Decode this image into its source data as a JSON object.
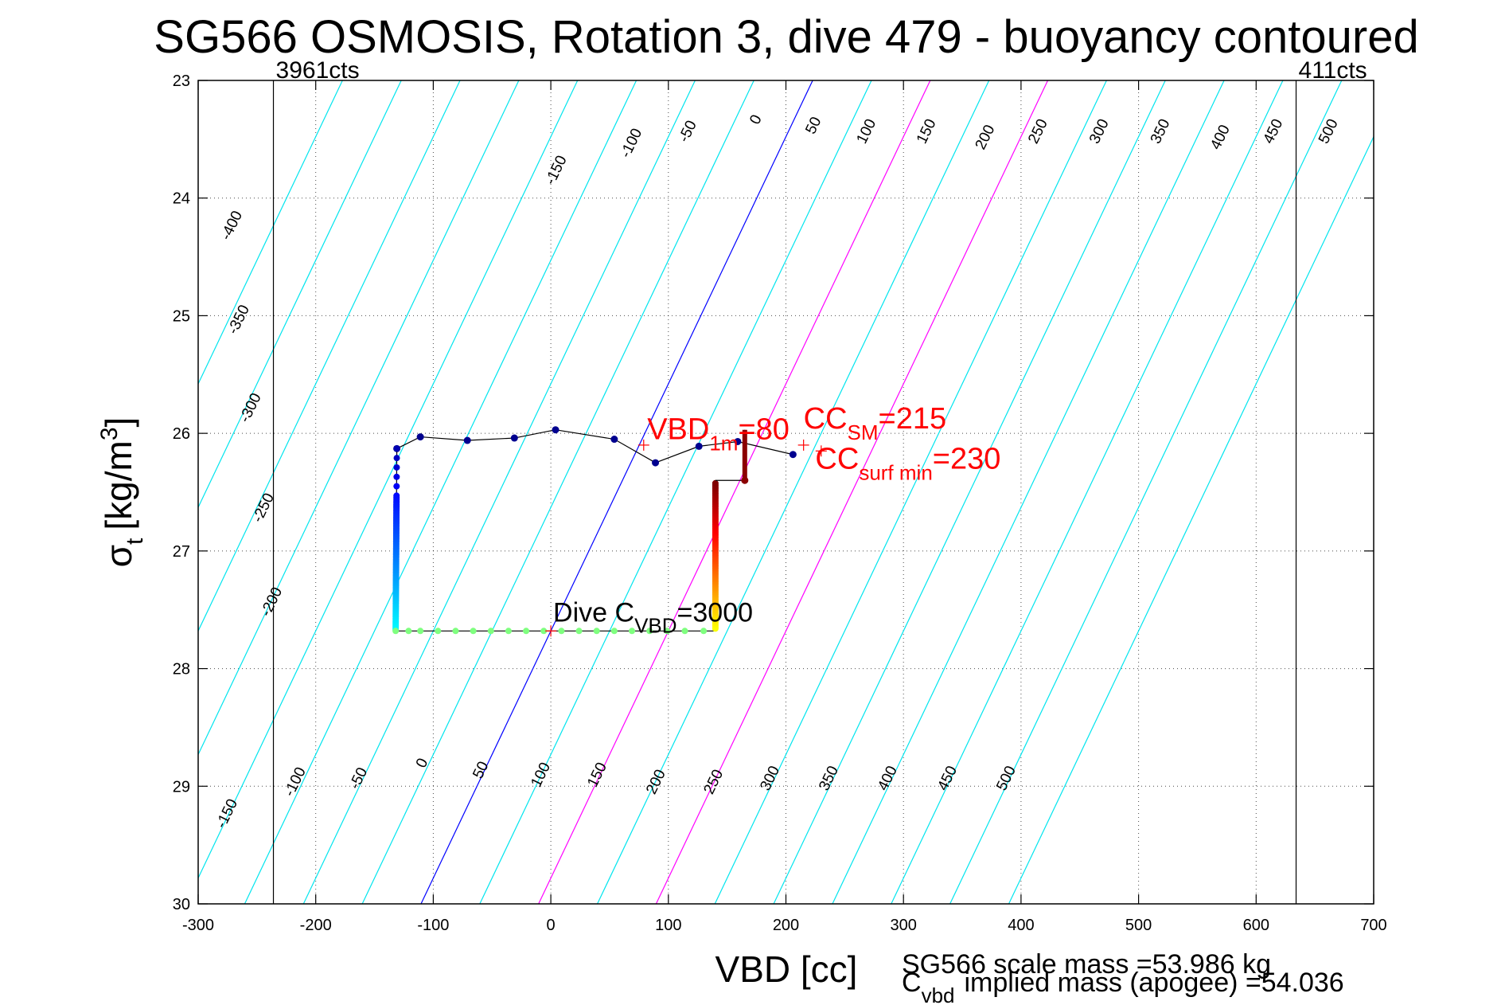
{
  "chart_data": {
    "type": "line",
    "title": "SG566 OSMOSIS, Rotation 3, dive 479 - buoyancy contoured",
    "xlabel": "VBD [cc]",
    "ylabel_main": "σ",
    "ylabel_sub": "t",
    "ylabel_unit": "[kg/m",
    "ylabel_sup": "3",
    "ylabel_close": "]",
    "xlim": [
      -300,
      700
    ],
    "ylim": [
      23,
      30
    ],
    "y_reversed": true,
    "grid": true,
    "x_ticks": [
      -300,
      -200,
      -100,
      0,
      100,
      200,
      300,
      400,
      500,
      600,
      700
    ],
    "y_ticks": [
      23,
      24,
      25,
      26,
      27,
      28,
      29,
      30
    ],
    "contour_slope": 0.0063,
    "contour_ref_y": 27.68,
    "contours": [
      -400,
      -350,
      -300,
      -250,
      -200,
      -150,
      -100,
      -50,
      0,
      50,
      100,
      150,
      200,
      250,
      300,
      350,
      400,
      450,
      500
    ],
    "highlight_contours": [
      {
        "level": 0,
        "color": "#0000ff"
      },
      {
        "level": 100,
        "color": "#ff00ff"
      },
      {
        "level": 200,
        "color": "#ff00ff"
      }
    ],
    "contour_color": "#00e5ee",
    "contour_labels_top": [
      {
        "label": "-150",
        "x": 8,
        "y": 23.78
      },
      {
        "label": "-100",
        "x": 72,
        "y": 23.55
      },
      {
        "label": "-50",
        "x": 120,
        "y": 23.45
      },
      {
        "label": "0",
        "x": 178,
        "y": 23.35
      },
      {
        "label": "50",
        "x": 227,
        "y": 23.4
      },
      {
        "label": "100",
        "x": 272,
        "y": 23.45
      },
      {
        "label": "150",
        "x": 323,
        "y": 23.45
      },
      {
        "label": "200",
        "x": 373,
        "y": 23.5
      },
      {
        "label": "250",
        "x": 418,
        "y": 23.45
      },
      {
        "label": "300",
        "x": 470,
        "y": 23.45
      },
      {
        "label": "350",
        "x": 522,
        "y": 23.45
      },
      {
        "label": "400",
        "x": 573,
        "y": 23.5
      },
      {
        "label": "450",
        "x": 618,
        "y": 23.45
      },
      {
        "label": "500",
        "x": 665,
        "y": 23.45
      }
    ],
    "contour_labels_left": [
      {
        "label": "-400",
        "x": -268,
        "y": 24.25
      },
      {
        "label": "-350",
        "x": -262,
        "y": 25.05
      },
      {
        "label": "-300",
        "x": -252,
        "y": 25.8
      },
      {
        "label": "-250",
        "x": -241,
        "y": 26.65
      },
      {
        "label": "-200",
        "x": -234,
        "y": 27.45
      },
      {
        "label": "-150",
        "x": -272,
        "y": 29.25
      }
    ],
    "contour_labels_bottom": [
      {
        "label": "-100",
        "x": -214,
        "y": 28.98
      },
      {
        "label": "-50",
        "x": -160,
        "y": 28.95
      },
      {
        "label": "0",
        "x": -106,
        "y": 28.82
      },
      {
        "label": "50",
        "x": -56,
        "y": 28.88
      },
      {
        "label": "100",
        "x": -5,
        "y": 28.92
      },
      {
        "label": "150",
        "x": 43,
        "y": 28.92
      },
      {
        "label": "200",
        "x": 93,
        "y": 28.98
      },
      {
        "label": "250",
        "x": 142,
        "y": 28.98
      },
      {
        "label": "300",
        "x": 190,
        "y": 28.95
      },
      {
        "label": "350",
        "x": 240,
        "y": 28.95
      },
      {
        "label": "400",
        "x": 290,
        "y": 28.95
      },
      {
        "label": "450",
        "x": 341,
        "y": 28.95
      },
      {
        "label": "500",
        "x": 391,
        "y": 28.95
      }
    ],
    "vertical_lines": [
      {
        "x": -236,
        "label": "3961cts"
      },
      {
        "x": 634,
        "label": "411cts"
      }
    ],
    "dive_series": {
      "name": "dive",
      "color": "#000000",
      "points": [
        [
          -131,
          26.13
        ],
        [
          -111,
          26.03
        ],
        [
          -71,
          26.06
        ],
        [
          -31,
          26.04
        ],
        [
          4,
          25.97
        ],
        [
          54,
          26.05
        ],
        [
          89,
          26.25
        ],
        [
          126,
          26.11
        ],
        [
          159,
          26.07
        ],
        [
          206,
          26.18
        ]
      ]
    },
    "vertical_segment_left": {
      "x_top": -131,
      "y_top": 26.13,
      "x_bottom": -132,
      "y_bottom": 27.68,
      "dense_from": 26.45
    },
    "bottom_segment": {
      "x_start": -132,
      "x_end": 140,
      "y": 27.68,
      "dots_x": [
        -132,
        -121,
        -111,
        -96,
        -81,
        -66,
        -51,
        -36,
        -21,
        -6,
        9,
        24,
        39,
        54,
        69,
        84,
        99,
        114,
        130
      ]
    },
    "vertical_segment_right": {
      "x_top": 140,
      "y_top": 26.42,
      "x_bottom": 140,
      "y_bottom": 27.66
    },
    "climb_hook": [
      [
        140,
        26.4
      ],
      [
        165,
        26.4
      ],
      [
        165,
        25.97
      ]
    ],
    "markers": [
      {
        "name": "vbd-1m",
        "x": 79,
        "y": 26.1
      },
      {
        "name": "cc-sm",
        "x": 215,
        "y": 26.1
      },
      {
        "name": "cc-surf-min",
        "x": 230,
        "y": 26.15
      },
      {
        "name": "dive-cvbd",
        "x": 0,
        "y": 27.68
      }
    ],
    "annotations": {
      "vbd_1m": {
        "main": "VBD",
        "sub": "1m",
        "value": "=80",
        "x": 82,
        "y": 26.05
      },
      "cc_sm": {
        "main": "CC",
        "sub": "SM",
        "value": "=215",
        "x": 215,
        "y": 25.96
      },
      "cc_surf_min": {
        "main": "CC",
        "sub": "surf min",
        "value": "=230",
        "x": 225,
        "y": 26.3
      },
      "dive_cvbd": {
        "main": "Dive C",
        "sub": "VBD",
        "value": "=3000",
        "x": 2,
        "y": 27.6
      }
    },
    "colormap_note": "points colored by depth using jet colormap (blue top → red)"
  },
  "footer": {
    "scale_mass": "SG566 scale mass =53.986 kg",
    "cvbd_main": "C",
    "cvbd_sub": "vbd",
    "cvbd_rest": "implied mass (apogee) =54.036"
  }
}
